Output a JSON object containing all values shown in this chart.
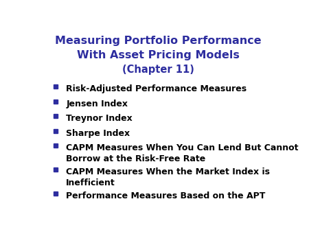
{
  "title_line1": "Measuring Portfolio Performance",
  "title_line2": "With Asset Pricing Models",
  "title_line3": "(Chapter 11)",
  "title_color": "#2d2d9f",
  "bullet_color": "#2d2d9f",
  "text_color": "#000000",
  "background_color": "#ffffff",
  "bullet_items": [
    "Risk-Adjusted Performance Measures",
    "Jensen Index",
    "Treynor Index",
    "Sharpe Index",
    "CAPM Measures When You Can Lend But Cannot\nBorrow at the Risk-Free Rate",
    "CAPM Measures When the Market Index is\nInefficient",
    "Performance Measures Based on the APT"
  ],
  "title_fontsize": 11.5,
  "subtitle_fontsize": 10.5,
  "bullet_fontsize": 9.0,
  "figsize": [
    4.5,
    3.38
  ],
  "dpi": 100
}
